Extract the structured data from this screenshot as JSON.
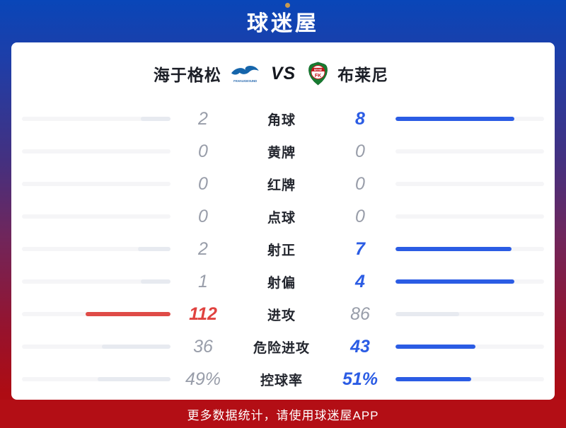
{
  "header": {
    "logo_text": "球迷屋"
  },
  "match": {
    "home_team": "海于格松",
    "away_team": "布莱尼",
    "vs_label": "VS",
    "home_logo": "FK Haugesund gull crest",
    "home_logo_caption": "FKHAUGESUND",
    "away_logo": "Bryne FK crest",
    "away_logo_band_text": "BRYNE",
    "away_logo_center_text": "FK"
  },
  "stats": {
    "rows": [
      {
        "label": "角球",
        "left": {
          "value": "2",
          "color": "gray",
          "bar_pct": 20,
          "bar_color": "muted"
        },
        "right": {
          "value": "8",
          "color": "blue",
          "bar_pct": 80,
          "bar_color": "blue"
        }
      },
      {
        "label": "黄牌",
        "left": {
          "value": "0",
          "color": "gray",
          "bar_pct": 0,
          "bar_color": "none"
        },
        "right": {
          "value": "0",
          "color": "gray",
          "bar_pct": 0,
          "bar_color": "none"
        }
      },
      {
        "label": "红牌",
        "left": {
          "value": "0",
          "color": "gray",
          "bar_pct": 0,
          "bar_color": "none"
        },
        "right": {
          "value": "0",
          "color": "gray",
          "bar_pct": 0,
          "bar_color": "none"
        }
      },
      {
        "label": "点球",
        "left": {
          "value": "0",
          "color": "gray",
          "bar_pct": 0,
          "bar_color": "none"
        },
        "right": {
          "value": "0",
          "color": "gray",
          "bar_pct": 0,
          "bar_color": "none"
        }
      },
      {
        "label": "射正",
        "left": {
          "value": "2",
          "color": "gray",
          "bar_pct": 22,
          "bar_color": "muted"
        },
        "right": {
          "value": "7",
          "color": "blue",
          "bar_pct": 78,
          "bar_color": "blue"
        }
      },
      {
        "label": "射偏",
        "left": {
          "value": "1",
          "color": "gray",
          "bar_pct": 20,
          "bar_color": "muted"
        },
        "right": {
          "value": "4",
          "color": "blue",
          "bar_pct": 80,
          "bar_color": "blue"
        }
      },
      {
        "label": "进攻",
        "left": {
          "value": "112",
          "color": "red",
          "bar_pct": 57,
          "bar_color": "red"
        },
        "right": {
          "value": "86",
          "color": "gray",
          "bar_pct": 43,
          "bar_color": "muted"
        }
      },
      {
        "label": "危险进攻",
        "left": {
          "value": "36",
          "color": "gray",
          "bar_pct": 46,
          "bar_color": "muted"
        },
        "right": {
          "value": "43",
          "color": "blue",
          "bar_pct": 54,
          "bar_color": "blue"
        }
      },
      {
        "label": "控球率",
        "left": {
          "value": "49%",
          "color": "gray",
          "bar_pct": 49,
          "bar_color": "muted"
        },
        "right": {
          "value": "51%",
          "color": "blue",
          "bar_pct": 51,
          "bar_color": "blue"
        }
      }
    ]
  },
  "footer": {
    "text": "更多数据统计，请使用球迷屋APP"
  },
  "colors": {
    "accent_blue": "#2b5ce4",
    "accent_red": "#e0423f",
    "bar_red": "#df4b47",
    "bar_muted": "#e7eaf0",
    "bar_track": "#f5f5f7",
    "value_gray": "#989da9",
    "label_dark": "#23262e",
    "footer_bg": "#b30e15",
    "logo_gold": "#c8994f",
    "gradient_top_blue": "#0946b8",
    "gradient_bottom_red": "#b10d13",
    "home_logo_blue": "#1565ab",
    "away_logo_green": "#187a31",
    "away_logo_red": "#c3161c"
  }
}
